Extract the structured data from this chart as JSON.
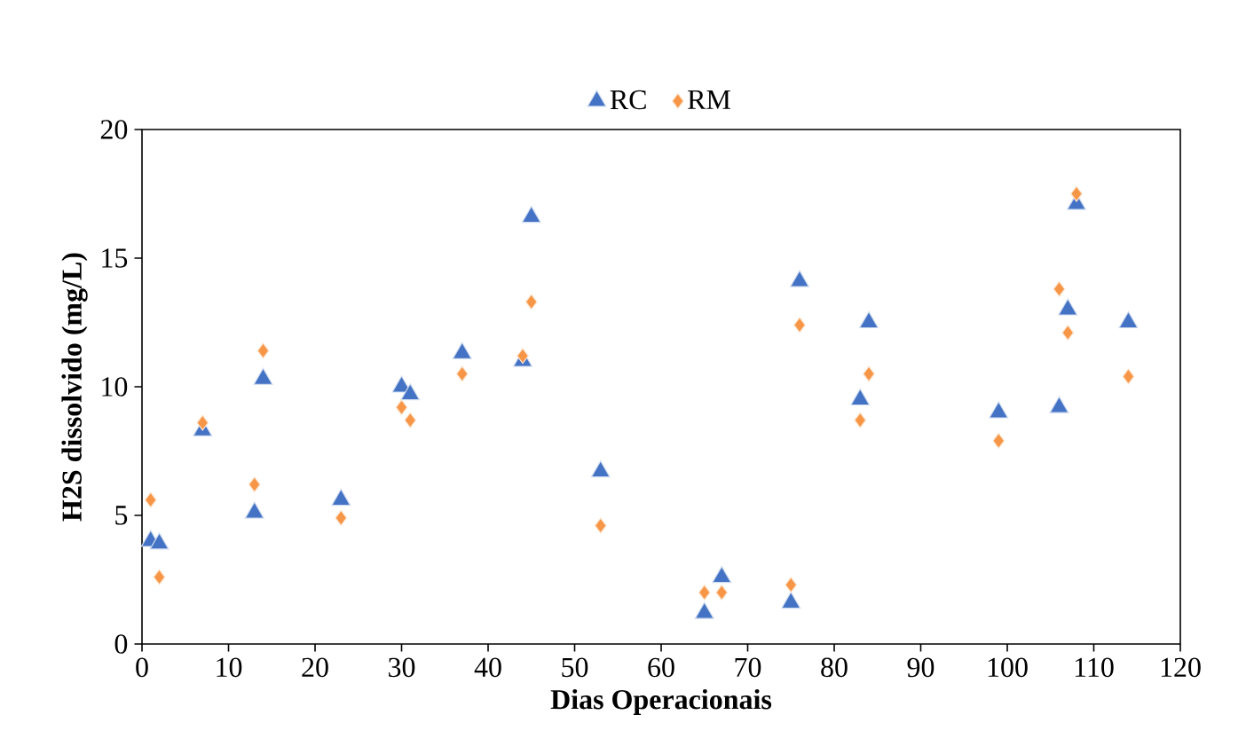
{
  "chart_data": {
    "type": "scatter",
    "xlabel": "Dias Operacionais",
    "ylabel": "H2S dissolvido (mg/L)",
    "xlim": [
      0,
      120
    ],
    "xticks": [
      0,
      10,
      20,
      30,
      40,
      50,
      60,
      70,
      80,
      90,
      100,
      110,
      120
    ],
    "ylim": [
      0,
      20
    ],
    "yticks": [
      0,
      5,
      10,
      15,
      20
    ],
    "legend": "top",
    "grid": false,
    "x": [
      1,
      2,
      7,
      13,
      14,
      23,
      30,
      31,
      37,
      44,
      45,
      53,
      65,
      67,
      75,
      76,
      83,
      84,
      99,
      106,
      107,
      108,
      114
    ],
    "series": [
      {
        "name": "RC",
        "color": "#4472c4",
        "marker": "triangle",
        "values": [
          4.0,
          3.9,
          8.3,
          5.1,
          10.3,
          5.6,
          10.0,
          9.7,
          11.3,
          11.0,
          16.6,
          6.7,
          1.2,
          2.6,
          1.6,
          14.1,
          9.5,
          12.5,
          9.0,
          9.2,
          13.0,
          17.1,
          12.5
        ]
      },
      {
        "name": "RM",
        "color": "#f79646",
        "marker": "diamond",
        "values": [
          5.6,
          2.6,
          8.6,
          6.2,
          11.4,
          4.9,
          9.2,
          8.7,
          10.5,
          11.2,
          13.3,
          4.6,
          2.0,
          2.0,
          2.3,
          12.4,
          8.7,
          10.5,
          7.9,
          13.8,
          12.1,
          17.5,
          10.4
        ]
      }
    ]
  }
}
